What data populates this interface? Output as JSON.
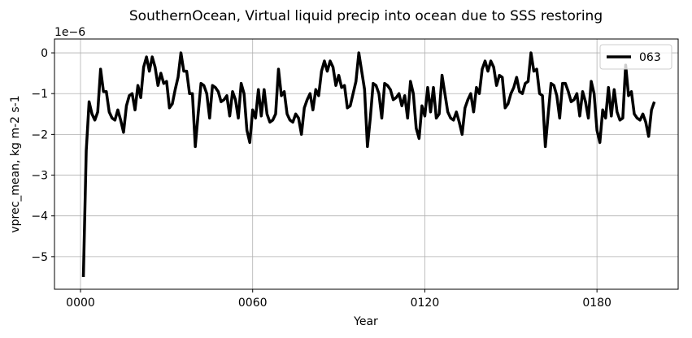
{
  "chart_data": {
    "type": "line",
    "title": "SouthernOcean, Virtual liquid precip into ocean due to SSS restoring",
    "xlabel": "Year",
    "ylabel": "vprec_mean, kg m-2 s-1",
    "offset_label": "1e−6",
    "x": [
      1,
      2,
      3,
      4,
      5,
      6,
      7,
      8,
      9,
      10,
      11,
      12,
      13,
      14,
      15,
      16,
      17,
      18,
      19,
      20,
      21,
      22,
      23,
      24,
      25,
      26,
      27,
      28,
      29,
      30,
      31,
      32,
      33,
      34,
      35,
      36,
      37,
      38,
      39,
      40,
      41,
      42,
      43,
      44,
      45,
      46,
      47,
      48,
      49,
      50,
      51,
      52,
      53,
      54,
      55,
      56,
      57,
      58,
      59,
      60,
      61,
      62,
      63,
      64,
      65,
      66,
      67,
      68,
      69,
      70,
      71,
      72,
      73,
      74,
      75,
      76,
      77,
      78,
      79,
      80,
      81,
      82,
      83,
      84,
      85,
      86,
      87,
      88,
      89,
      90,
      91,
      92,
      93,
      94,
      95,
      96,
      97,
      98,
      99,
      100,
      101,
      102,
      103,
      104,
      105,
      106,
      107,
      108,
      109,
      110,
      111,
      112,
      113,
      114,
      115,
      116,
      117,
      118,
      119,
      120,
      121,
      122,
      123,
      124,
      125,
      126,
      127,
      128,
      129,
      130,
      131,
      132,
      133,
      134,
      135,
      136,
      137,
      138,
      139,
      140,
      141,
      142,
      143,
      144,
      145,
      146,
      147,
      148,
      149,
      150,
      151,
      152,
      153,
      154,
      155,
      156,
      157,
      158,
      159,
      160,
      161,
      162,
      163,
      164,
      165,
      166,
      167,
      168,
      169,
      170,
      171,
      172,
      173,
      174,
      175,
      176,
      177,
      178,
      179,
      180,
      181,
      182,
      183,
      184,
      185,
      186,
      187,
      188,
      189,
      190,
      191,
      192,
      193,
      194,
      195,
      196,
      197,
      198,
      199,
      200
    ],
    "series": [
      {
        "name": "063",
        "color": "#000000",
        "values": [
          -5.5,
          -2.4,
          -1.2,
          -1.5,
          -1.65,
          -1.45,
          -0.4,
          -0.95,
          -0.95,
          -1.45,
          -1.6,
          -1.65,
          -1.4,
          -1.65,
          -1.95,
          -1.3,
          -1.05,
          -1.0,
          -1.4,
          -0.8,
          -1.1,
          -0.35,
          -0.1,
          -0.45,
          -0.1,
          -0.35,
          -0.8,
          -0.5,
          -0.75,
          -0.7,
          -1.35,
          -1.25,
          -0.9,
          -0.6,
          0,
          -0.45,
          -0.45,
          -1.0,
          -1.0,
          -2.3,
          -1.5,
          -0.75,
          -0.8,
          -1.0,
          -1.6,
          -0.8,
          -0.85,
          -0.95,
          -1.2,
          -1.15,
          -1.05,
          -1.55,
          -0.95,
          -1.15,
          -1.6,
          -0.75,
          -1.0,
          -1.9,
          -2.2,
          -1.4,
          -1.6,
          -0.9,
          -1.55,
          -0.9,
          -1.5,
          -1.7,
          -1.65,
          -1.5,
          -0.4,
          -1.05,
          -0.95,
          -1.5,
          -1.65,
          -1.7,
          -1.5,
          -1.6,
          -2.0,
          -1.35,
          -1.15,
          -1.0,
          -1.4,
          -0.9,
          -1.05,
          -0.45,
          -0.2,
          -0.45,
          -0.2,
          -0.35,
          -0.8,
          -0.55,
          -0.85,
          -0.8,
          -1.35,
          -1.3,
          -1.0,
          -0.7,
          0,
          -0.45,
          -0.9,
          -2.3,
          -1.6,
          -0.75,
          -0.8,
          -1.0,
          -1.6,
          -0.75,
          -0.8,
          -0.9,
          -1.15,
          -1.1,
          -1.0,
          -1.3,
          -1.05,
          -1.6,
          -0.7,
          -1.0,
          -1.85,
          -2.1,
          -1.3,
          -1.55,
          -0.85,
          -1.45,
          -0.85,
          -1.6,
          -1.5,
          -0.55,
          -1.0,
          -1.45,
          -1.6,
          -1.65,
          -1.45,
          -1.7,
          -2.0,
          -1.35,
          -1.15,
          -1.0,
          -1.45,
          -0.85,
          -1.0,
          -0.4,
          -0.2,
          -0.45,
          -0.2,
          -0.35,
          -0.8,
          -0.55,
          -0.6,
          -1.35,
          -1.25,
          -1.0,
          -0.85,
          -0.6,
          -0.95,
          -1.0,
          -0.75,
          -0.7,
          0,
          -0.45,
          -0.4,
          -1.0,
          -1.05,
          -2.3,
          -1.5,
          -0.75,
          -0.8,
          -1.05,
          -1.6,
          -0.75,
          -0.75,
          -0.95,
          -1.2,
          -1.15,
          -1.0,
          -1.55,
          -0.95,
          -1.2,
          -1.6,
          -0.7,
          -1.0,
          -1.9,
          -2.2,
          -1.4,
          -1.6,
          -0.85,
          -1.55,
          -0.9,
          -1.45,
          -1.65,
          -1.6,
          -0.3,
          -1.05,
          -0.95,
          -1.5,
          -1.6,
          -1.65,
          -1.5,
          -1.7,
          -2.05,
          -1.4,
          -1.2
        ]
      }
    ],
    "xlim": [
      -9.07,
      208.3
    ],
    "xticks": [
      {
        "value": 0,
        "label": "0000"
      },
      {
        "value": 60,
        "label": "0060"
      },
      {
        "value": 120,
        "label": "0120"
      },
      {
        "value": 180,
        "label": "0180"
      }
    ],
    "ylim": [
      -5.8,
      0.34
    ],
    "yticks": [
      {
        "value": -5,
        "label": "−5"
      },
      {
        "value": -4,
        "label": "−4"
      },
      {
        "value": -3,
        "label": "−3"
      },
      {
        "value": -2,
        "label": "−2"
      },
      {
        "value": -1,
        "label": "−1"
      },
      0
    ],
    "grid": true,
    "legend": "upper right"
  }
}
